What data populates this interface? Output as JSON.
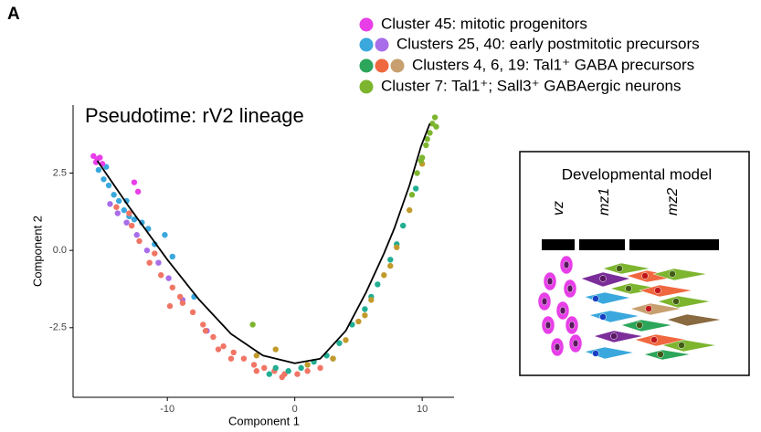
{
  "panel_label": "A",
  "chart_data": {
    "type": "scatter",
    "title": "Pseudotime: rV2 lineage",
    "x_label": "Component 1",
    "y_label": "Component 2",
    "xlim": [
      -17.4,
      12.5
    ],
    "ylim": [
      -4.75,
      4.7
    ],
    "xticks": [
      -10,
      0,
      10
    ],
    "yticks": [
      -2.5,
      {
        "value": 0,
        "label": "0.0"
      },
      2.5
    ],
    "legend": [
      {
        "label": "Cluster 45:   mitotic progenitors",
        "colors": [
          "#e83ee8"
        ]
      },
      {
        "label": "Clusters 25, 40:  early postmitotic precursors",
        "colors": [
          "#3aa8dd",
          "#a86de8"
        ]
      },
      {
        "label": "Clusters 4, 6, 19: Tal1⁺ GABA precursors",
        "colors": [
          "#2ba65a",
          "#f0683f",
          "#c8a070"
        ]
      },
      {
        "label": "Cluster 7:  Tal1⁺; Sall3⁺ GABAergic neurons",
        "colors": [
          "#7db52f"
        ]
      }
    ],
    "series": [
      {
        "color": "#3aa8dd",
        "x": [
          -15.4,
          -15.0,
          -14.6,
          -14.2,
          -13.8,
          -13.4,
          -13.0,
          -12.6,
          -12.0,
          -11.5,
          -11.0,
          -10.2,
          -9.6,
          -7.9,
          -14.8,
          -13.2
        ],
        "values": [
          2.6,
          2.3,
          2.1,
          1.8,
          1.6,
          1.3,
          1.1,
          1.0,
          0.9,
          0.7,
          0.2,
          0.5,
          -0.2,
          -1.5,
          2.7,
          1.6
        ]
      },
      {
        "color": "#a86de8",
        "x": [
          -14.5,
          -13.9,
          -13.2,
          -12.4,
          -11.6,
          -10.7,
          -9.9,
          -8.8,
          -6.9
        ],
        "values": [
          1.5,
          1.2,
          0.9,
          0.5,
          0.0,
          -0.4,
          -0.9,
          -1.6,
          -2.6
        ]
      },
      {
        "color": "#f07565",
        "x": [
          -14.0,
          -13.0,
          -12.2,
          -11.4,
          -10.5,
          -9.6,
          -8.8,
          -8.0,
          -7.2,
          -6.4,
          -5.6,
          -4.8,
          -4.0,
          -3.2,
          -2.4,
          -1.6,
          -0.8,
          0.2,
          1.0,
          2.0,
          -12.8,
          -11.0,
          -9.0,
          -7.0,
          -5.0,
          -3.0,
          -1.0,
          -9.8,
          -6.0
        ],
        "values": [
          1.4,
          1.2,
          0.3,
          -0.4,
          -0.8,
          -1.2,
          -1.7,
          -2.0,
          -2.4,
          -2.8,
          -3.1,
          -3.3,
          -3.5,
          -3.7,
          -3.8,
          -3.9,
          -4.0,
          -4.0,
          -3.9,
          -3.8,
          0.8,
          -0.1,
          -1.5,
          -2.6,
          -3.5,
          -3.9,
          -4.1,
          -1.8,
          -3.2
        ]
      },
      {
        "color": "#22ae92",
        "x": [
          -1.5,
          -0.5,
          0.5,
          1.5,
          2.5,
          3.5,
          4.5,
          5.5,
          6.5,
          7.5,
          8.5,
          9.5,
          3.0,
          6.0,
          8.0,
          -2.0
        ],
        "values": [
          -3.8,
          -3.9,
          -3.8,
          -3.6,
          -3.4,
          -3.0,
          -2.4,
          -1.9,
          -1.1,
          -0.3,
          0.8,
          2.0,
          -3.5,
          -1.5,
          0.2,
          -4.0
        ]
      },
      {
        "color": "#c29a2c",
        "x": [
          -1.5,
          -3.0,
          1.0,
          3.0,
          4.0,
          5.0,
          6.0,
          7.0,
          8.0,
          9.0,
          10.0,
          5.5,
          7.5
        ],
        "values": [
          -3.2,
          -3.4,
          -3.7,
          -3.5,
          -2.9,
          -2.3,
          -1.6,
          -0.8,
          0.1,
          1.3,
          2.8,
          -2.1,
          -0.5
        ]
      },
      {
        "color": "#7db52f",
        "x": [
          -3.3,
          9.2,
          9.6,
          10.0,
          10.3,
          10.6,
          10.8,
          11.0,
          11.1,
          10.4,
          9.9
        ],
        "values": [
          -2.4,
          1.8,
          2.5,
          3.0,
          3.4,
          3.8,
          4.1,
          4.3,
          4.0,
          3.6,
          2.9
        ]
      },
      {
        "color": "#e83ee8",
        "x": [
          -15.8,
          -15.5,
          -15.3,
          -15.6,
          -15.1,
          -12.6,
          -12.3
        ],
        "values": [
          3.05,
          2.95,
          3.0,
          2.85,
          2.8,
          2.2,
          1.9
        ]
      }
    ],
    "trajectory": {
      "color": "#000000",
      "x": [
        -15.5,
        -13,
        -10,
        -7.5,
        -5,
        -2.5,
        0,
        2,
        4,
        5.6,
        7,
        7.8,
        9,
        9.9,
        10.6
      ],
      "values": [
        2.9,
        1.4,
        -0.3,
        -1.6,
        -2.7,
        -3.4,
        -3.65,
        -3.5,
        -2.6,
        -1.35,
        -0.1,
        0.7,
        2.1,
        3.35,
        4.1
      ]
    }
  },
  "diagram": {
    "title": "Developmental model",
    "zones": [
      "vz",
      "mz1",
      "mz2"
    ]
  }
}
